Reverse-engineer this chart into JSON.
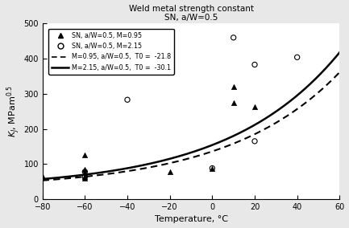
{
  "title_line1": "Weld metal strength constant",
  "title_line2": "SN, a/W=0.5",
  "xlabel": "Temperature, °C",
  "ylabel": "$K_J$, MPam$^{0.5}$",
  "xlim": [
    -80,
    60
  ],
  "ylim": [
    0,
    500
  ],
  "xticks": [
    -80,
    -60,
    -40,
    -20,
    0,
    20,
    40,
    60
  ],
  "yticks": [
    0,
    100,
    200,
    300,
    400,
    500
  ],
  "tri_x": [
    -80,
    -60,
    -60,
    -60,
    -60,
    -60,
    -20,
    0,
    10,
    10,
    20
  ],
  "tri_y": [
    65,
    85,
    65,
    60,
    75,
    125,
    78,
    88,
    320,
    275,
    263
  ],
  "circ_x": [
    -40,
    0,
    10,
    20,
    40,
    20,
    -60,
    -60
  ],
  "circ_y": [
    283,
    88,
    460,
    383,
    404,
    165,
    78,
    63
  ],
  "T0_solid": -30.1,
  "T0_dashed": -21.8,
  "legend_labels": [
    "SN, a/W=0.5, M=0.95",
    "SN, a/W=0.5, M=2.15",
    "M=0.95, a/W=0.5,  T0 =  -21.8",
    "M=2.15, a/W=0.5,  T0 =  -30.1"
  ],
  "figure_facecolor": "#e8e8e8",
  "plot_facecolor": "#ffffff"
}
